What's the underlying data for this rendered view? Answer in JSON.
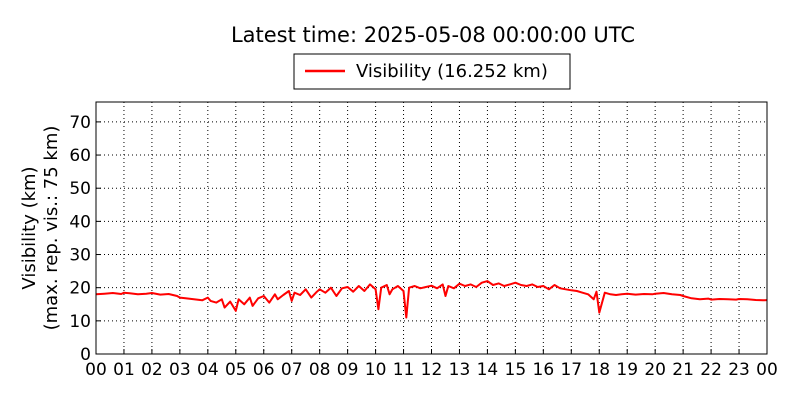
{
  "chart_data": {
    "type": "line",
    "title": "Latest time: 2025-05-08 00:00:00 UTC",
    "xlabel": "",
    "ylabel": [
      "Visibility (km)",
      "(max. rep. vis.: 75 km)"
    ],
    "ylim": [
      0,
      76
    ],
    "yticks": [
      0,
      10,
      20,
      30,
      40,
      50,
      60,
      70
    ],
    "xlim": [
      0,
      24
    ],
    "xticks": [
      "00",
      "01",
      "02",
      "03",
      "04",
      "05",
      "06",
      "07",
      "08",
      "09",
      "10",
      "11",
      "12",
      "13",
      "14",
      "15",
      "16",
      "17",
      "18",
      "19",
      "20",
      "21",
      "22",
      "23",
      "00"
    ],
    "grid": true,
    "legend": {
      "position": "top-center"
    },
    "colors": {
      "series": "#ff0000"
    },
    "series": [
      {
        "name": "Visibility (16.252 km)",
        "x": [
          0,
          0.3,
          0.6,
          0.9,
          1.0,
          1.2,
          1.5,
          1.8,
          2.0,
          2.3,
          2.6,
          2.9,
          3.0,
          3.2,
          3.5,
          3.8,
          4.0,
          4.1,
          4.3,
          4.5,
          4.6,
          4.8,
          5.0,
          5.1,
          5.3,
          5.5,
          5.6,
          5.8,
          6.0,
          6.2,
          6.4,
          6.5,
          6.7,
          6.9,
          7.0,
          7.1,
          7.3,
          7.5,
          7.7,
          7.9,
          8.0,
          8.2,
          8.4,
          8.6,
          8.8,
          9.0,
          9.2,
          9.4,
          9.6,
          9.8,
          10.0,
          10.1,
          10.2,
          10.4,
          10.5,
          10.6,
          10.8,
          11.0,
          11.1,
          11.2,
          11.4,
          11.6,
          11.8,
          12.0,
          12.2,
          12.4,
          12.5,
          12.6,
          12.8,
          13.0,
          13.2,
          13.4,
          13.6,
          13.8,
          14.0,
          14.2,
          14.4,
          14.6,
          14.8,
          15.0,
          15.2,
          15.4,
          15.6,
          15.8,
          16.0,
          16.2,
          16.4,
          16.6,
          16.8,
          17.0,
          17.2,
          17.4,
          17.6,
          17.8,
          17.9,
          18.0,
          18.2,
          18.4,
          18.6,
          18.8,
          19.0,
          19.3,
          19.6,
          19.9,
          20.0,
          20.3,
          20.6,
          20.9,
          21.0,
          21.3,
          21.6,
          21.9,
          22.0,
          22.3,
          22.6,
          22.9,
          23.0,
          23.3,
          23.6,
          23.9,
          24.0
        ],
        "y": [
          18.0,
          18.2,
          18.4,
          18.1,
          18.5,
          18.3,
          18.0,
          18.2,
          18.4,
          17.9,
          18.1,
          17.5,
          17.0,
          16.8,
          16.5,
          16.2,
          17.0,
          16.0,
          15.5,
          16.5,
          14.0,
          15.8,
          13.0,
          16.5,
          15.0,
          17.0,
          14.5,
          16.8,
          17.5,
          15.5,
          18.0,
          16.5,
          17.8,
          19.0,
          16.0,
          18.5,
          17.8,
          19.5,
          17.0,
          18.8,
          19.5,
          18.5,
          20.0,
          17.5,
          19.8,
          20.2,
          18.8,
          20.5,
          19.0,
          21.0,
          19.5,
          13.5,
          20.0,
          20.8,
          18.0,
          19.5,
          20.5,
          19.0,
          11.0,
          20.0,
          20.5,
          19.8,
          20.2,
          20.6,
          19.8,
          21.0,
          17.5,
          20.5,
          19.8,
          21.2,
          20.5,
          21.0,
          20.2,
          21.5,
          22.0,
          20.8,
          21.3,
          20.5,
          21.0,
          21.5,
          20.8,
          20.5,
          21.0,
          20.2,
          20.5,
          19.5,
          20.8,
          19.8,
          19.5,
          19.2,
          19.0,
          18.5,
          18.0,
          16.5,
          18.8,
          12.5,
          18.5,
          18.0,
          17.8,
          18.0,
          18.2,
          17.9,
          18.1,
          18.0,
          18.2,
          18.4,
          18.0,
          17.8,
          17.5,
          16.8,
          16.5,
          16.7,
          16.4,
          16.6,
          16.5,
          16.4,
          16.6,
          16.5,
          16.3,
          16.2,
          16.252
        ]
      }
    ]
  }
}
